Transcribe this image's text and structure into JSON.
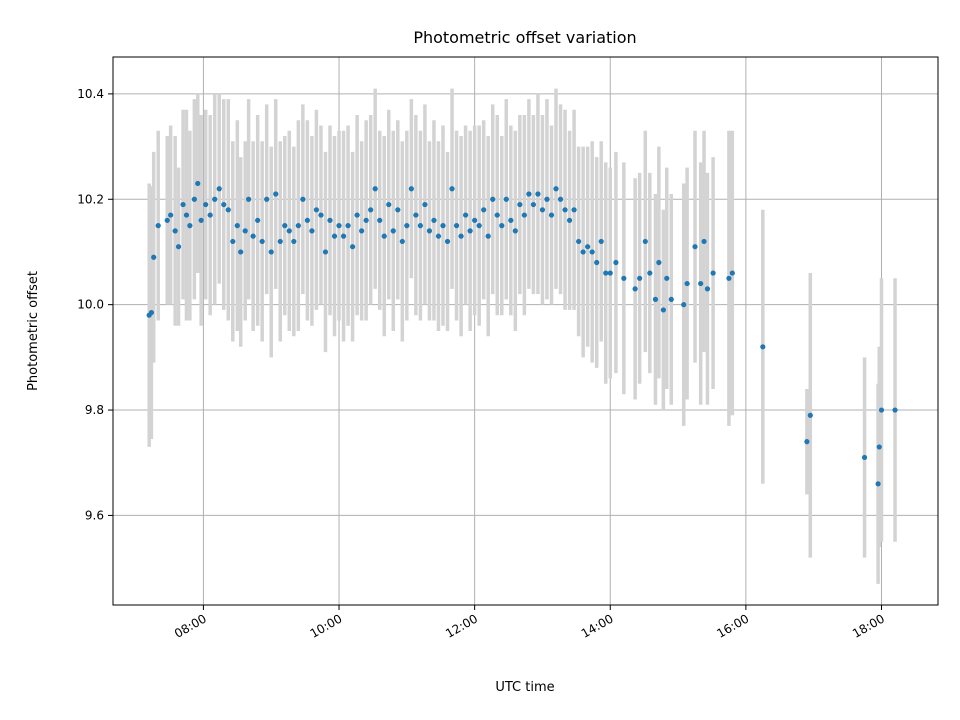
{
  "chart_data": {
    "type": "scatter",
    "title": "Photometric offset variation",
    "xlabel": "UTC time",
    "ylabel": "Photometric offset",
    "x_unit": "hours (UTC)",
    "x_ticks": [
      "08:00",
      "10:00",
      "12:00",
      "14:00",
      "16:00",
      "18:00"
    ],
    "y_ticks": [
      "9.6",
      "9.8",
      "10.0",
      "10.2",
      "10.4"
    ],
    "xlim": [
      "06:40",
      "18:50"
    ],
    "ylim": [
      9.43,
      10.47
    ],
    "grid": true,
    "colors": {
      "points": "#1f77b4",
      "errorbars": "#d3d3d3",
      "grid": "#b0b0b0"
    },
    "series": [
      {
        "points": [
          {
            "x": "07:12",
            "y": 9.98,
            "err": 0.25
          },
          {
            "x": "07:14",
            "y": 9.985,
            "err": 0.24
          },
          {
            "x": "07:16",
            "y": 10.09,
            "err": 0.2
          },
          {
            "x": "07:20",
            "y": 10.15,
            "err": 0.18
          },
          {
            "x": "07:28",
            "y": 10.16,
            "err": 0.16
          },
          {
            "x": "07:31",
            "y": 10.17,
            "err": 0.17
          },
          {
            "x": "07:35",
            "y": 10.14,
            "err": 0.18
          },
          {
            "x": "07:38",
            "y": 10.11,
            "err": 0.15
          },
          {
            "x": "07:42",
            "y": 10.19,
            "err": 0.18
          },
          {
            "x": "07:45",
            "y": 10.17,
            "err": 0.2
          },
          {
            "x": "07:48",
            "y": 10.15,
            "err": 0.18
          },
          {
            "x": "07:52",
            "y": 10.2,
            "err": 0.19
          },
          {
            "x": "07:55",
            "y": 10.23,
            "err": 0.17
          },
          {
            "x": "07:58",
            "y": 10.16,
            "err": 0.2
          },
          {
            "x": "08:02",
            "y": 10.19,
            "err": 0.18
          },
          {
            "x": "08:06",
            "y": 10.17,
            "err": 0.19
          },
          {
            "x": "08:10",
            "y": 10.2,
            "err": 0.2
          },
          {
            "x": "08:14",
            "y": 10.22,
            "err": 0.18
          },
          {
            "x": "08:18",
            "y": 10.19,
            "err": 0.2
          },
          {
            "x": "08:22",
            "y": 10.18,
            "err": 0.21
          },
          {
            "x": "08:26",
            "y": 10.12,
            "err": 0.19
          },
          {
            "x": "08:30",
            "y": 10.15,
            "err": 0.2
          },
          {
            "x": "08:33",
            "y": 10.1,
            "err": 0.18
          },
          {
            "x": "08:37",
            "y": 10.14,
            "err": 0.17
          },
          {
            "x": "08:40",
            "y": 10.2,
            "err": 0.19
          },
          {
            "x": "08:44",
            "y": 10.13,
            "err": 0.18
          },
          {
            "x": "08:48",
            "y": 10.16,
            "err": 0.2
          },
          {
            "x": "08:52",
            "y": 10.12,
            "err": 0.19
          },
          {
            "x": "08:56",
            "y": 10.2,
            "err": 0.18
          },
          {
            "x": "09:00",
            "y": 10.1,
            "err": 0.2
          },
          {
            "x": "09:04",
            "y": 10.21,
            "err": 0.18
          },
          {
            "x": "09:08",
            "y": 10.12,
            "err": 0.19
          },
          {
            "x": "09:12",
            "y": 10.15,
            "err": 0.17
          },
          {
            "x": "09:16",
            "y": 10.14,
            "err": 0.19
          },
          {
            "x": "09:20",
            "y": 10.12,
            "err": 0.18
          },
          {
            "x": "09:24",
            "y": 10.15,
            "err": 0.2
          },
          {
            "x": "09:28",
            "y": 10.2,
            "err": 0.18
          },
          {
            "x": "09:32",
            "y": 10.16,
            "err": 0.19
          },
          {
            "x": "09:36",
            "y": 10.14,
            "err": 0.18
          },
          {
            "x": "09:40",
            "y": 10.18,
            "err": 0.19
          },
          {
            "x": "09:44",
            "y": 10.17,
            "err": 0.17
          },
          {
            "x": "09:48",
            "y": 10.1,
            "err": 0.19
          },
          {
            "x": "09:52",
            "y": 10.16,
            "err": 0.18
          },
          {
            "x": "09:56",
            "y": 10.13,
            "err": 0.19
          },
          {
            "x": "10:00",
            "y": 10.15,
            "err": 0.18
          },
          {
            "x": "10:04",
            "y": 10.13,
            "err": 0.2
          },
          {
            "x": "10:08",
            "y": 10.15,
            "err": 0.19
          },
          {
            "x": "10:12",
            "y": 10.11,
            "err": 0.18
          },
          {
            "x": "10:16",
            "y": 10.17,
            "err": 0.19
          },
          {
            "x": "10:20",
            "y": 10.14,
            "err": 0.17
          },
          {
            "x": "10:24",
            "y": 10.16,
            "err": 0.19
          },
          {
            "x": "10:28",
            "y": 10.18,
            "err": 0.18
          },
          {
            "x": "10:32",
            "y": 10.22,
            "err": 0.19
          },
          {
            "x": "10:36",
            "y": 10.16,
            "err": 0.17
          },
          {
            "x": "10:40",
            "y": 10.13,
            "err": 0.19
          },
          {
            "x": "10:44",
            "y": 10.19,
            "err": 0.18
          },
          {
            "x": "10:48",
            "y": 10.14,
            "err": 0.19
          },
          {
            "x": "10:52",
            "y": 10.18,
            "err": 0.17
          },
          {
            "x": "10:56",
            "y": 10.12,
            "err": 0.19
          },
          {
            "x": "11:00",
            "y": 10.15,
            "err": 0.18
          },
          {
            "x": "11:04",
            "y": 10.22,
            "err": 0.17
          },
          {
            "x": "11:08",
            "y": 10.17,
            "err": 0.19
          },
          {
            "x": "11:12",
            "y": 10.15,
            "err": 0.18
          },
          {
            "x": "11:16",
            "y": 10.19,
            "err": 0.19
          },
          {
            "x": "11:20",
            "y": 10.14,
            "err": 0.17
          },
          {
            "x": "11:24",
            "y": 10.16,
            "err": 0.19
          },
          {
            "x": "11:28",
            "y": 10.13,
            "err": 0.18
          },
          {
            "x": "11:32",
            "y": 10.15,
            "err": 0.19
          },
          {
            "x": "11:36",
            "y": 10.12,
            "err": 0.17
          },
          {
            "x": "11:40",
            "y": 10.22,
            "err": 0.19
          },
          {
            "x": "11:44",
            "y": 10.15,
            "err": 0.18
          },
          {
            "x": "11:48",
            "y": 10.13,
            "err": 0.19
          },
          {
            "x": "11:52",
            "y": 10.17,
            "err": 0.17
          },
          {
            "x": "11:56",
            "y": 10.14,
            "err": 0.19
          },
          {
            "x": "12:00",
            "y": 10.16,
            "err": 0.18
          },
          {
            "x": "12:04",
            "y": 10.15,
            "err": 0.19
          },
          {
            "x": "12:08",
            "y": 10.18,
            "err": 0.17
          },
          {
            "x": "12:12",
            "y": 10.13,
            "err": 0.19
          },
          {
            "x": "12:16",
            "y": 10.2,
            "err": 0.18
          },
          {
            "x": "12:20",
            "y": 10.17,
            "err": 0.19
          },
          {
            "x": "12:24",
            "y": 10.15,
            "err": 0.17
          },
          {
            "x": "12:28",
            "y": 10.2,
            "err": 0.19
          },
          {
            "x": "12:32",
            "y": 10.16,
            "err": 0.18
          },
          {
            "x": "12:36",
            "y": 10.14,
            "err": 0.19
          },
          {
            "x": "12:40",
            "y": 10.19,
            "err": 0.17
          },
          {
            "x": "12:44",
            "y": 10.17,
            "err": 0.19
          },
          {
            "x": "12:48",
            "y": 10.21,
            "err": 0.18
          },
          {
            "x": "12:52",
            "y": 10.19,
            "err": 0.17
          },
          {
            "x": "12:56",
            "y": 10.21,
            "err": 0.19
          },
          {
            "x": "13:00",
            "y": 10.18,
            "err": 0.18
          },
          {
            "x": "13:04",
            "y": 10.2,
            "err": 0.19
          },
          {
            "x": "13:08",
            "y": 10.17,
            "err": 0.17
          },
          {
            "x": "13:12",
            "y": 10.22,
            "err": 0.19
          },
          {
            "x": "13:16",
            "y": 10.2,
            "err": 0.18
          },
          {
            "x": "13:20",
            "y": 10.18,
            "err": 0.19
          },
          {
            "x": "13:24",
            "y": 10.16,
            "err": 0.17
          },
          {
            "x": "13:28",
            "y": 10.18,
            "err": 0.19
          },
          {
            "x": "13:32",
            "y": 10.12,
            "err": 0.18
          },
          {
            "x": "13:36",
            "y": 10.1,
            "err": 0.2
          },
          {
            "x": "13:40",
            "y": 10.11,
            "err": 0.19
          },
          {
            "x": "13:44",
            "y": 10.1,
            "err": 0.21
          },
          {
            "x": "13:48",
            "y": 10.08,
            "err": 0.2
          },
          {
            "x": "13:52",
            "y": 10.12,
            "err": 0.19
          },
          {
            "x": "13:56",
            "y": 10.06,
            "err": 0.21
          },
          {
            "x": "14:00",
            "y": 10.06,
            "err": 0.2
          },
          {
            "x": "14:05",
            "y": 10.08,
            "err": 0.21
          },
          {
            "x": "14:12",
            "y": 10.05,
            "err": 0.22
          },
          {
            "x": "14:22",
            "y": 10.03,
            "err": 0.21
          },
          {
            "x": "14:26",
            "y": 10.05,
            "err": 0.2
          },
          {
            "x": "14:31",
            "y": 10.12,
            "err": 0.21
          },
          {
            "x": "14:35",
            "y": 10.06,
            "err": 0.19
          },
          {
            "x": "14:40",
            "y": 10.01,
            "err": 0.2
          },
          {
            "x": "14:43",
            "y": 10.08,
            "err": 0.22
          },
          {
            "x": "14:47",
            "y": 9.99,
            "err": 0.19
          },
          {
            "x": "14:50",
            "y": 10.05,
            "err": 0.21
          },
          {
            "x": "14:54",
            "y": 10.01,
            "err": 0.2
          },
          {
            "x": "15:05",
            "y": 10.0,
            "err": 0.23
          },
          {
            "x": "15:08",
            "y": 10.04,
            "err": 0.22
          },
          {
            "x": "15:15",
            "y": 10.11,
            "err": 0.22
          },
          {
            "x": "15:20",
            "y": 10.04,
            "err": 0.23
          },
          {
            "x": "15:23",
            "y": 10.12,
            "err": 0.21
          },
          {
            "x": "15:26",
            "y": 10.03,
            "err": 0.22
          },
          {
            "x": "15:31",
            "y": 10.06,
            "err": 0.22
          },
          {
            "x": "15:45",
            "y": 10.05,
            "err": 0.28
          },
          {
            "x": "15:48",
            "y": 10.06,
            "err": 0.27
          },
          {
            "x": "16:15",
            "y": 9.92,
            "err": 0.26
          },
          {
            "x": "16:54",
            "y": 9.74,
            "err": 0.1
          },
          {
            "x": "16:57",
            "y": 9.79,
            "err": 0.27
          },
          {
            "x": "17:45",
            "y": 9.71,
            "err": 0.19
          },
          {
            "x": "17:57",
            "y": 9.66,
            "err": 0.19
          },
          {
            "x": "17:58",
            "y": 9.73,
            "err": 0.19
          },
          {
            "x": "18:00",
            "y": 9.8,
            "err": 0.25
          },
          {
            "x": "18:12",
            "y": 9.8,
            "err": 0.25
          }
        ]
      }
    ]
  }
}
